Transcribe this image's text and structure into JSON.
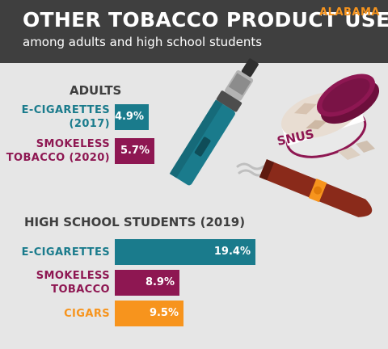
{
  "header": {
    "title": "OTHER TOBACCO PRODUCT USE",
    "subtitle": "among adults and high school students",
    "state": "ALABAMA"
  },
  "illustration": {
    "snus_label": "SNUS",
    "icons": [
      "e-cigarette-icon",
      "snus-tin-icon",
      "cigar-icon",
      "smoke-icon"
    ]
  },
  "colors": {
    "header_bg": "#3f3f3f",
    "background": "#e6e6e6",
    "state": "#f7941d",
    "teal": "#1a7b8c",
    "maroon": "#8e1752",
    "orange": "#f7941d",
    "dark_text": "#3f3f3f"
  },
  "chart_data": [
    {
      "type": "bar",
      "orientation": "horizontal",
      "title": "ADULTS",
      "categories": [
        "E-CIGARETTES (2017)",
        "SMOKELESS TOBACCO (2020)"
      ],
      "values": [
        4.9,
        5.7
      ],
      "value_labels": [
        "4.9%",
        "5.7%"
      ],
      "colors": [
        "#1a7b8c",
        "#8e1752"
      ],
      "unit": "%"
    },
    {
      "type": "bar",
      "orientation": "horizontal",
      "title": "HIGH SCHOOL STUDENTS (2019)",
      "categories": [
        "E-CIGARETTES",
        "SMOKELESS TOBACCO",
        "CIGARS"
      ],
      "values": [
        19.4,
        8.9,
        9.5
      ],
      "value_labels": [
        "19.4%",
        "8.9%",
        "9.5%"
      ],
      "colors": [
        "#1a7b8c",
        "#8e1752",
        "#f7941d"
      ],
      "unit": "%"
    }
  ],
  "label_lines": [
    [
      "E-CIGARETTES\n(2017)",
      "SMOKELESS\nTOBACCO (2020)"
    ],
    [
      "E-CIGARETTES",
      "SMOKELESS\nTOBACCO",
      "CIGARS"
    ]
  ]
}
